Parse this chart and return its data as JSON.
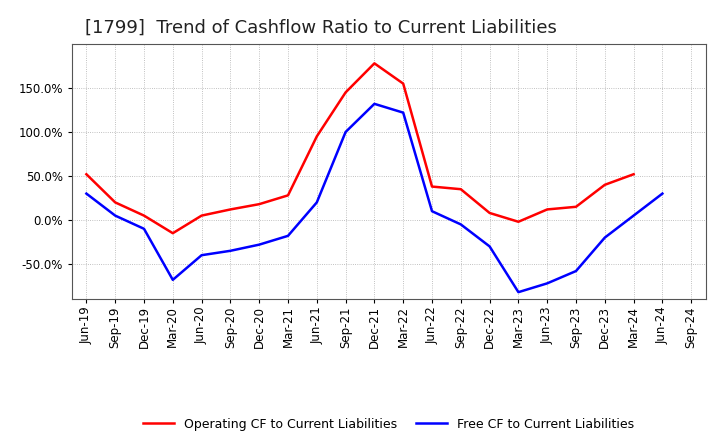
{
  "title": "[1799]  Trend of Cashflow Ratio to Current Liabilities",
  "x_labels": [
    "Jun-19",
    "Sep-19",
    "Dec-19",
    "Mar-20",
    "Jun-20",
    "Sep-20",
    "Dec-20",
    "Mar-21",
    "Jun-21",
    "Sep-21",
    "Dec-21",
    "Mar-22",
    "Jun-22",
    "Sep-22",
    "Dec-22",
    "Mar-23",
    "Jun-23",
    "Sep-23",
    "Dec-23",
    "Mar-24",
    "Jun-24",
    "Sep-24"
  ],
  "operating_cf": [
    52,
    20,
    5,
    -15,
    5,
    12,
    18,
    28,
    95,
    145,
    178,
    155,
    38,
    35,
    8,
    -2,
    12,
    15,
    40,
    52,
    null,
    null
  ],
  "free_cf": [
    30,
    5,
    -10,
    -68,
    -40,
    -35,
    -28,
    -18,
    20,
    100,
    132,
    122,
    10,
    -5,
    -30,
    -82,
    -72,
    -58,
    -20,
    5,
    30,
    null
  ],
  "operating_color": "#ff0000",
  "free_color": "#0000ff",
  "ylim": [
    -90,
    200
  ],
  "yticks": [
    -50.0,
    0.0,
    50.0,
    100.0,
    150.0
  ],
  "background_color": "#ffffff",
  "grid_color": "#999999",
  "legend_op": "Operating CF to Current Liabilities",
  "legend_free": "Free CF to Current Liabilities",
  "title_fontsize": 13,
  "title_color": "#222222",
  "axis_fontsize": 8.5
}
